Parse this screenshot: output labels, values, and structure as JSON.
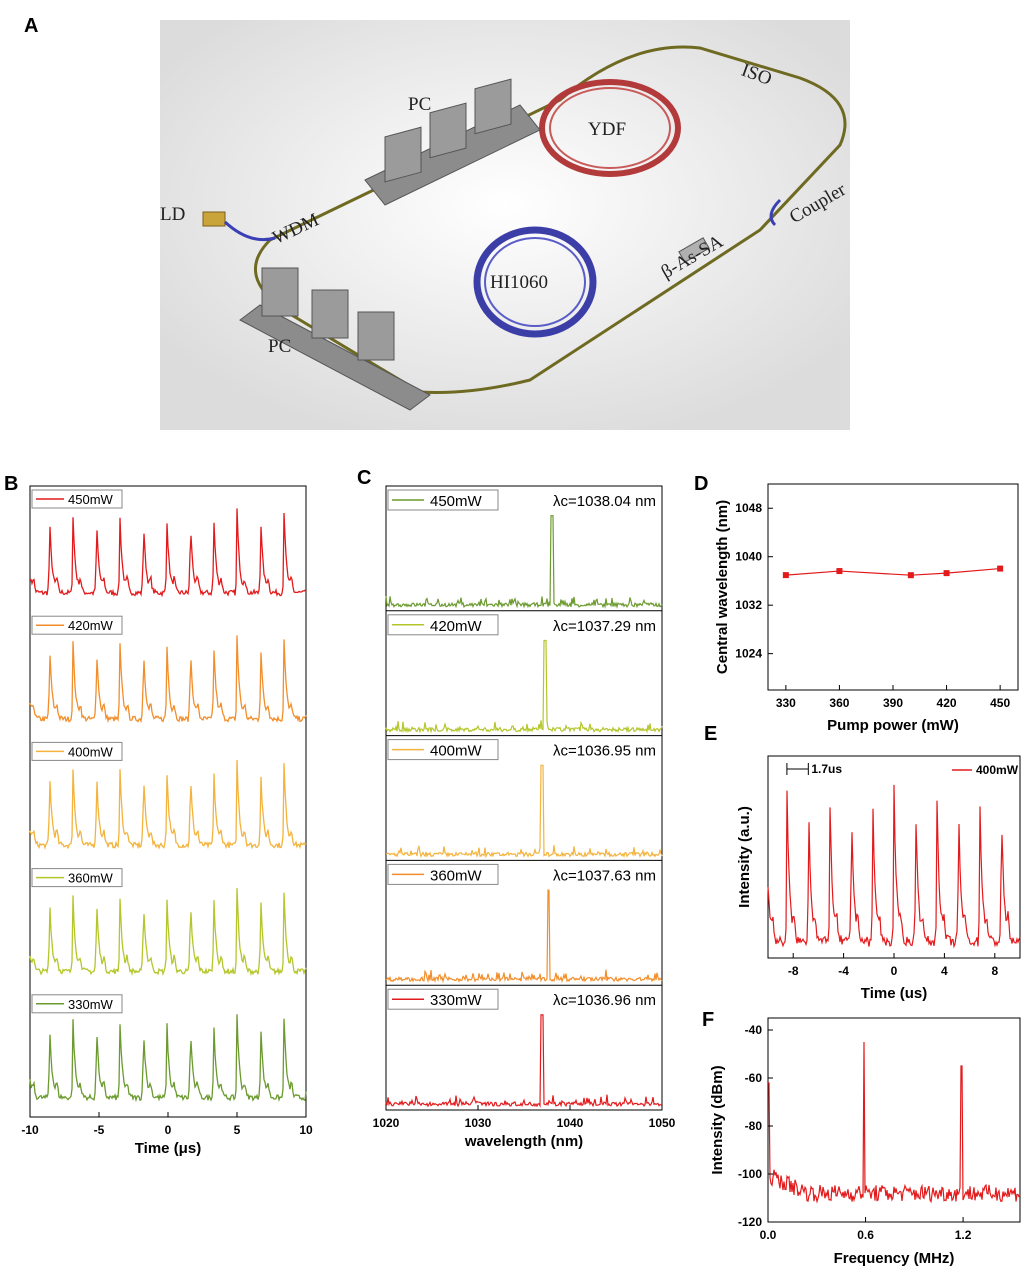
{
  "panels": {
    "a": "A",
    "b": "B",
    "c": "C",
    "d": "D",
    "e": "E",
    "f": "F"
  },
  "schematic": {
    "labels": [
      "PC",
      "YDF",
      "ISO",
      "LD",
      "WDM",
      "Coupler",
      "β-As-SA",
      "HI1060",
      "PC"
    ]
  },
  "colors": {
    "450mW": "#e31a1c",
    "420mW": "#f28e2b",
    "400mW": "#f3b33d",
    "360mW": "#b5c62b",
    "330mW": "#6b9a2f",
    "spectrum_450": "#6b9a2f",
    "spectrum_420": "#b5c62b",
    "spectrum_400": "#f3b33d",
    "spectrum_360": "#f28e2b",
    "spectrum_330": "#e31a1c",
    "red": "#e31a1c"
  },
  "chart_data": [
    {
      "panel": "B",
      "type": "line",
      "xlabel": "Time (μs)",
      "xlim": [
        -10,
        10
      ],
      "xticks": [
        "-10",
        "-5",
        "0",
        "5",
        "10"
      ],
      "pulse_period_us": 1.7,
      "series": [
        {
          "name": "450mW",
          "first_peak_us": -8.6
        },
        {
          "name": "420mW",
          "first_peak_us": -8.6
        },
        {
          "name": "400mW",
          "first_peak_us": -8.6
        },
        {
          "name": "360mW",
          "first_peak_us": -8.6
        },
        {
          "name": "330mW",
          "first_peak_us": -8.6
        }
      ]
    },
    {
      "panel": "C",
      "type": "line",
      "xlabel": "wavelength (nm)",
      "xlim": [
        1020,
        1050
      ],
      "xticks": [
        "1020",
        "1030",
        "1040",
        "1050"
      ],
      "series": [
        {
          "name": "450mW",
          "center_label": "λc=1038.04 nm",
          "center_nm": 1038.04
        },
        {
          "name": "420mW",
          "center_label": "λc=1037.29 nm",
          "center_nm": 1037.29
        },
        {
          "name": "400mW",
          "center_label": "λc=1036.95 nm",
          "center_nm": 1036.95
        },
        {
          "name": "360mW",
          "center_label": "λc=1037.63 nm",
          "center_nm": 1037.63
        },
        {
          "name": "330mW",
          "center_label": "λc=1036.96 nm",
          "center_nm": 1036.96
        }
      ]
    },
    {
      "panel": "D",
      "type": "line",
      "xlabel": "Pump power (mW)",
      "ylabel": "Central wavelength (nm)",
      "xlim": [
        320,
        460
      ],
      "ylim": [
        1018,
        1052
      ],
      "xticks": [
        "330",
        "360",
        "390",
        "420",
        "450"
      ],
      "yticks": [
        "1024",
        "1032",
        "1040",
        "1048"
      ],
      "x": [
        330,
        360,
        400,
        420,
        450
      ],
      "y": [
        1036.96,
        1037.63,
        1036.95,
        1037.29,
        1038.04
      ]
    },
    {
      "panel": "E",
      "type": "line",
      "xlabel": "Time (us)",
      "ylabel": "Intensity (a.u.)",
      "xlim": [
        -10,
        10
      ],
      "xticks": [
        "-8",
        "-4",
        "0",
        "4",
        "8"
      ],
      "legend": "400mW",
      "annotation": "1.7us",
      "pulse_period_us": 1.7,
      "first_peak_us": -8.5
    },
    {
      "panel": "F",
      "type": "line",
      "xlabel": "Frequency (MHz)",
      "ylabel": "Intensity (dBm)",
      "xlim": [
        0,
        1.55
      ],
      "ylim": [
        -120,
        -35
      ],
      "xticks": [
        "0.0",
        "0.6",
        "1.2"
      ],
      "yticks": [
        "-40",
        "-60",
        "-80",
        "-100",
        "-120"
      ],
      "peaks": [
        {
          "x": 0.59,
          "y": -45
        },
        {
          "x": 1.19,
          "y": -55
        }
      ],
      "noise_floor_dbm": -108
    }
  ]
}
